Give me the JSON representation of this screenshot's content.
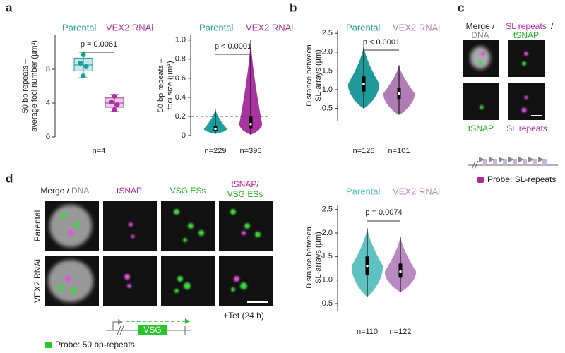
{
  "panel_labels": [
    "a",
    "b",
    "c",
    "d"
  ],
  "chart_data": [
    {
      "type": "box",
      "ylabel": [
        "50 bp repeats –",
        "average foci number (µm³)"
      ],
      "ylim": [
        0,
        12
      ],
      "yticks": [
        0,
        4,
        8
      ],
      "annotation": "p = 0.0061",
      "n_label": "n=4",
      "series": [
        {
          "name": "Parental",
          "color": "#1b9e9e",
          "q1": 7.8,
          "median": 8.5,
          "q3": 9.3,
          "whisker_low": 7.0,
          "whisker_high": 10.0,
          "points": [
            7.2,
            8.3,
            8.7,
            9.7
          ]
        },
        {
          "name": "VEX2 RNAi",
          "color": "#a8359f",
          "q1": 3.5,
          "median": 4.0,
          "q3": 4.6,
          "whisker_low": 3.0,
          "whisker_high": 5.0,
          "points": [
            3.2,
            3.8,
            4.1,
            4.8
          ]
        }
      ]
    },
    {
      "type": "violin",
      "ylabel": [
        "50 bp repeats –",
        "foci size (µm³)"
      ],
      "ylim": [
        0,
        1.05
      ],
      "yticks": [
        0,
        0.2,
        0.4,
        0.6,
        0.8,
        {
          "value": 1,
          "label": "1.0"
        }
      ],
      "reference_line": 0.2,
      "annotation": "p < 0.0001",
      "series": [
        {
          "name": "Parental",
          "color": "#1b9e9e",
          "min": 0.02,
          "q1": 0.05,
          "median": 0.07,
          "q3": 0.1,
          "max": 0.27,
          "n_label": "n=229"
        },
        {
          "name": "VEX2 RNAi",
          "color": "#a8359f",
          "min": 0.01,
          "q1": 0.07,
          "median": 0.12,
          "q3": 0.2,
          "max": 1.0,
          "n_label": "n=396"
        }
      ]
    },
    {
      "type": "violin",
      "ylabel": [
        "Distance between",
        "SL-arrays (µm)"
      ],
      "ylim": [
        0.15,
        2.6
      ],
      "yticks": [
        0.5,
        {
          "value": 1,
          "label": "1.0"
        },
        1.5,
        {
          "value": 2,
          "label": "2.0"
        },
        2.5
      ],
      "annotation": "p < 0.0001",
      "series": [
        {
          "name": "Parental",
          "color": "#1f9999",
          "min": 0.5,
          "q1": 0.95,
          "median": 1.15,
          "q3": 1.35,
          "max": 2.15,
          "n_label": "n=126"
        },
        {
          "name": "VEX2 RNAi",
          "color": "#b07cb5",
          "min": 0.33,
          "q1": 0.75,
          "median": 0.9,
          "q3": 1.05,
          "max": 1.65,
          "n_label": "n=101"
        }
      ]
    },
    {
      "type": "violin",
      "ylabel": [
        "Distance between",
        "SL-arrays (µm)"
      ],
      "ylim": [
        0.35,
        2.6
      ],
      "yticks": [
        0.5,
        {
          "value": 1,
          "label": "1.0"
        },
        1.5,
        {
          "value": 2,
          "label": "2.0"
        },
        2.5
      ],
      "annotation": "p = 0.0074",
      "series": [
        {
          "name": "Parental",
          "color": "#5ec2c2",
          "min": 0.65,
          "q1": 1.1,
          "median": 1.3,
          "q3": 1.5,
          "max": 2.1,
          "n_label": "n=110"
        },
        {
          "name": "VEX2 RNAi",
          "color": "#b98ac2",
          "min": 0.75,
          "q1": 1.05,
          "median": 1.18,
          "q3": 1.35,
          "max": 1.92,
          "n_label": "n=122"
        }
      ]
    }
  ],
  "panel_c": {
    "merge": "Merge /",
    "dna": "DNA",
    "sl": "SL repeats",
    "slash": "/",
    "tsnap": "tSNAP",
    "bottom_left": "tSNAP",
    "bottom_right": "SL repeats",
    "probe": "Probe: SL-repeats"
  },
  "panel_d": {
    "merge": "Merge /",
    "dna": "DNA",
    "tsnap": "tSNAP",
    "vsg": "VSG ESs",
    "overlay_top": "tSNAP/",
    "overlay_bottom": "VSG ESs",
    "rows": [
      "Parental",
      "VEX2 RNAi"
    ],
    "treatment": "+Tet (24 h)",
    "gene": "VSG",
    "probe": "Probe: 50 bp-repeats"
  }
}
